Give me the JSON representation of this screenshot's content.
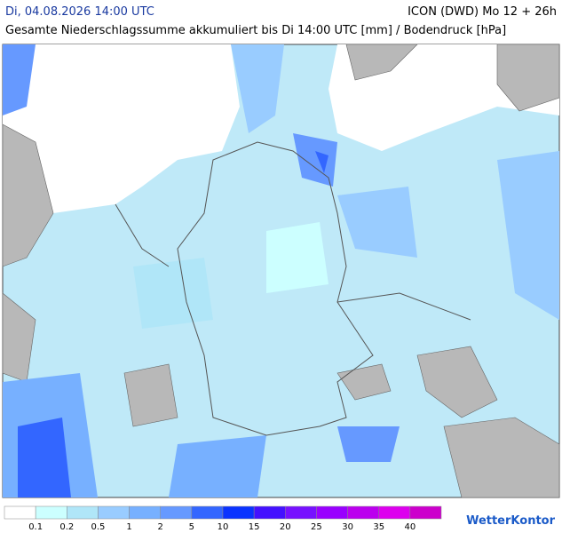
{
  "header": {
    "datetime": "Di, 04.08.2026 14:00 UTC",
    "model": "ICON (DWD) Mo 12 + 26h",
    "subtitle": "Gesamte Niederschlagssumme akkumuliert bis Di 14:00 UTC [mm] / Bodendruck [hPa]"
  },
  "legend": {
    "colors": [
      "#ffffff",
      "#ccffff",
      "#b0e6f8",
      "#99ccff",
      "#77b0ff",
      "#6699ff",
      "#3366ff",
      "#0a33ff",
      "#4411ff",
      "#7711ff",
      "#9900ff",
      "#bb00ee",
      "#dd00ee",
      "#cc00cc"
    ],
    "labels": [
      0.1,
      0.2,
      0.5,
      1,
      2,
      5,
      10,
      15,
      20,
      25,
      30,
      35,
      40
    ]
  },
  "brand": "WetterKontor"
}
